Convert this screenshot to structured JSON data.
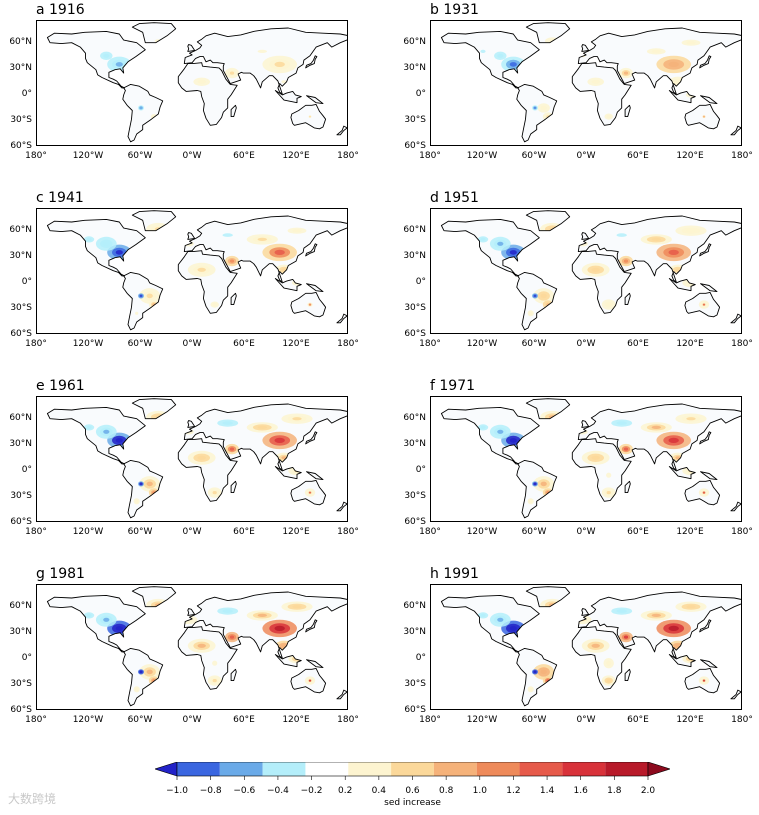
{
  "chart_data": {
    "type": "heatmap",
    "layout": "4x2 small multiples of world maps",
    "colorbar": {
      "label": "sed increase",
      "ticks": [
        "−1.0",
        "−0.8",
        "−0.6",
        "−0.4",
        "−0.2",
        "0.2",
        "0.4",
        "0.6",
        "0.8",
        "1.0",
        "1.2",
        "1.4",
        "1.6",
        "1.8",
        "2.0"
      ],
      "colors": [
        "#2222c8",
        "#3a66e0",
        "#6aaae8",
        "#b4eefa",
        "#ffffff",
        "#fdf4d0",
        "#fbd89a",
        "#f5b27a",
        "#ee8a5a",
        "#e65a4a",
        "#d8323a",
        "#b81a2a",
        "#8c0a1e"
      ],
      "extend": "both"
    },
    "axes": {
      "xticks": [
        "180°",
        "120°W",
        "60°W",
        "0°W",
        "60°E",
        "120°E",
        "180°"
      ],
      "yticks": [
        "60°N",
        "30°N",
        "0°",
        "30°S",
        "60°S"
      ],
      "xlim": [
        -180,
        180
      ],
      "ylim": [
        -60,
        85
      ]
    },
    "panels": [
      {
        "title": "a 1916",
        "intensity": 0.2
      },
      {
        "title": "b 1931",
        "intensity": 0.4
      },
      {
        "title": "c 1941",
        "intensity": 0.6
      },
      {
        "title": "d 1951",
        "intensity": 0.7
      },
      {
        "title": "e 1961",
        "intensity": 0.8
      },
      {
        "title": "f 1971",
        "intensity": 0.85
      },
      {
        "title": "g 1981",
        "intensity": 0.95
      },
      {
        "title": "h 1991",
        "intensity": 1.0
      }
    ]
  },
  "watermark": "大数跨境"
}
